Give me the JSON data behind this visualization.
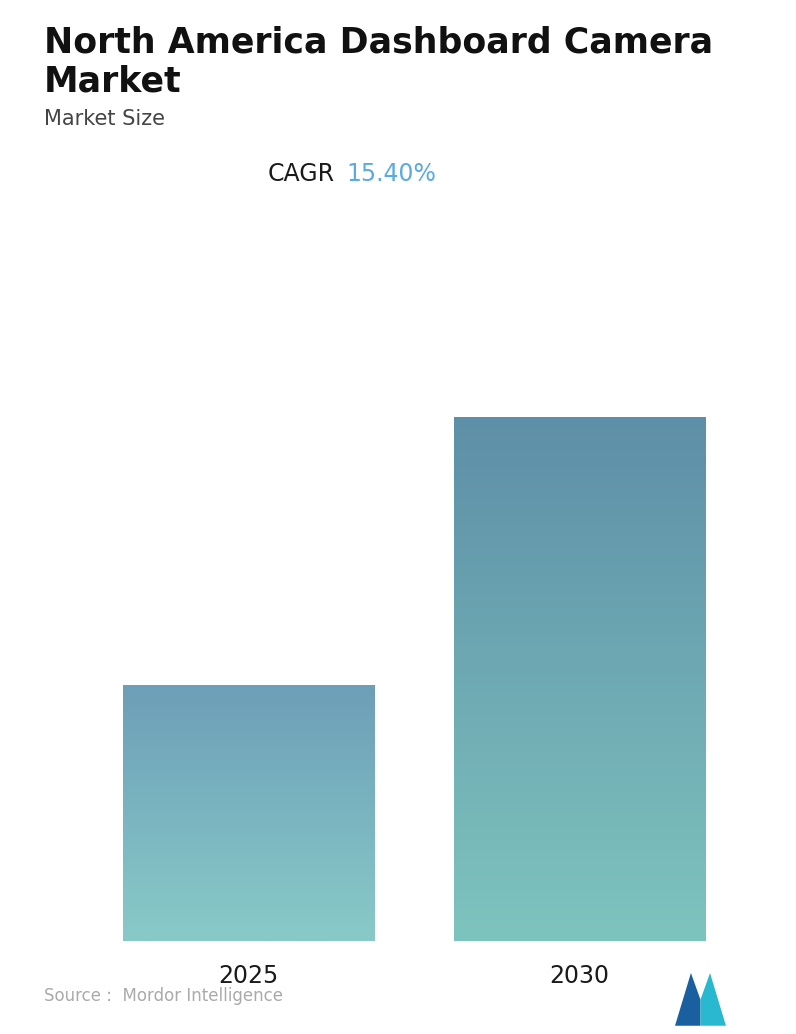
{
  "title_line1": "North America Dashboard Camera",
  "title_line2": "Market",
  "subtitle": "Market Size",
  "cagr_label": "CAGR",
  "cagr_value": "15.40%",
  "categories": [
    "2025",
    "2030"
  ],
  "values": [
    1.0,
    2.05
  ],
  "bar_top_colors": [
    "#6d9fb8",
    "#5e8fa8"
  ],
  "bar_bottom_colors": [
    "#88cac8",
    "#7ec4be"
  ],
  "source_text": "Source :  Mordor Intelligence",
  "background_color": "#ffffff",
  "title_fontsize": 25,
  "subtitle_fontsize": 15,
  "cagr_label_color": "#1a1a1a",
  "cagr_value_color": "#5aabe0",
  "cagr_fontsize": 17,
  "source_fontsize": 12,
  "source_color": "#aaaaaa",
  "xtick_fontsize": 17,
  "xtick_color": "#1a1a1a"
}
